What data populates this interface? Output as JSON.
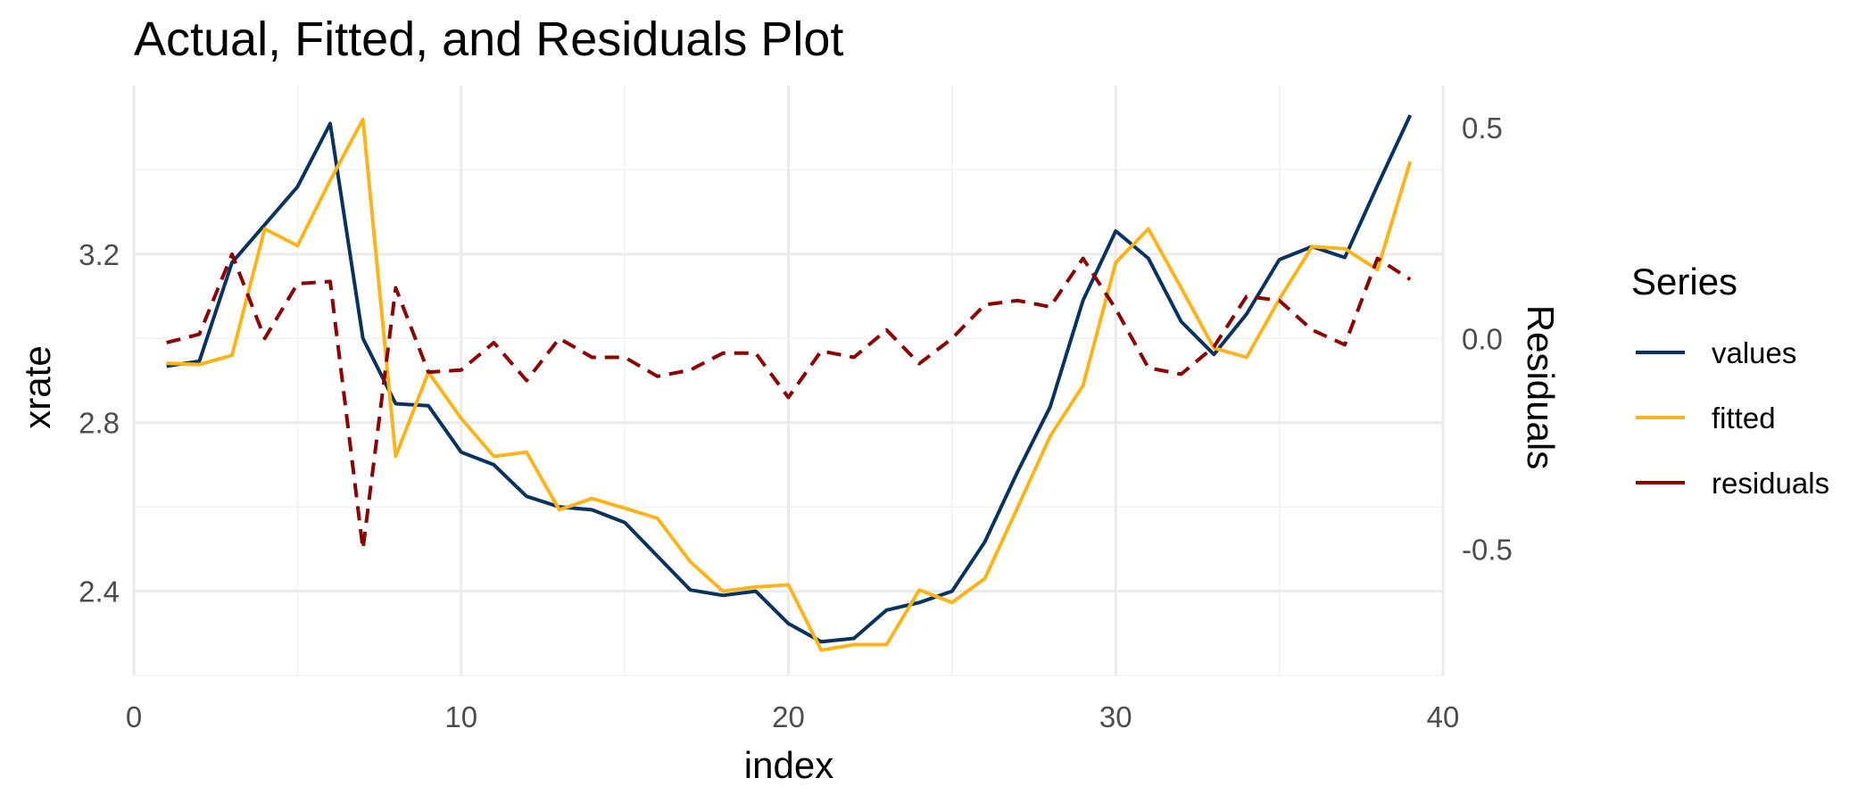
{
  "chart_data": {
    "type": "line",
    "title": "Actual, Fitted, and Residuals Plot",
    "xlabel": "index",
    "ylabel": "xrate",
    "y2label": "Residuals",
    "xlim": [
      0,
      40
    ],
    "ylim": [
      2.2,
      3.6
    ],
    "y2lim": [
      -0.8,
      0.6
    ],
    "x_ticks": [
      "0",
      "10",
      "20",
      "30",
      "40"
    ],
    "y_ticks": [
      "2.4",
      "2.8",
      "3.2"
    ],
    "y2_ticks": [
      "-0.5",
      "0.0",
      "0.5"
    ],
    "grid": true,
    "legend": {
      "title": "Series",
      "position": "right"
    },
    "x": [
      1,
      2,
      3,
      4,
      5,
      6,
      7,
      8,
      9,
      10,
      11,
      12,
      13,
      14,
      15,
      16,
      17,
      18,
      19,
      20,
      21,
      22,
      23,
      24,
      25,
      26,
      27,
      28,
      29,
      30,
      31,
      32,
      33,
      34,
      35,
      36,
      37,
      38,
      39
    ],
    "series": [
      {
        "name": "values",
        "axis": "left",
        "style": "solid",
        "color": "#08335f",
        "values": [
          2.934,
          2.946,
          3.18,
          3.27,
          3.36,
          3.51,
          3.0,
          2.845,
          2.84,
          2.73,
          2.7,
          2.625,
          2.6,
          2.593,
          2.563,
          2.483,
          2.403,
          2.39,
          2.4,
          2.323,
          2.28,
          2.288,
          2.355,
          2.373,
          2.4,
          2.517,
          2.683,
          2.838,
          3.09,
          3.255,
          3.19,
          3.04,
          2.962,
          3.058,
          3.187,
          3.218,
          3.192,
          3.363,
          3.53
        ]
      },
      {
        "name": "fitted",
        "axis": "left",
        "style": "solid",
        "color": "#fbb41b",
        "values": [
          2.941,
          2.938,
          2.96,
          3.26,
          3.22,
          3.375,
          3.52,
          2.72,
          2.92,
          2.81,
          2.72,
          2.73,
          2.593,
          2.62,
          2.597,
          2.573,
          2.47,
          2.4,
          2.41,
          2.415,
          2.26,
          2.273,
          2.273,
          2.403,
          2.373,
          2.43,
          2.598,
          2.768,
          2.888,
          3.18,
          3.26,
          3.12,
          2.977,
          2.955,
          3.093,
          3.218,
          3.213,
          3.163,
          3.42
        ]
      },
      {
        "name": "residuals",
        "axis": "right",
        "style": "dashed",
        "color": "#8b0000",
        "values": [
          -0.01,
          0.01,
          0.2,
          0.0,
          0.13,
          0.135,
          -0.5,
          0.12,
          -0.08,
          -0.075,
          -0.01,
          -0.1,
          0.0,
          -0.045,
          -0.045,
          -0.09,
          -0.075,
          -0.035,
          -0.035,
          -0.14,
          -0.03,
          -0.045,
          0.02,
          -0.06,
          0.0,
          0.08,
          0.09,
          0.075,
          0.19,
          0.07,
          -0.07,
          -0.085,
          -0.02,
          0.1,
          0.09,
          0.02,
          -0.015,
          0.19,
          0.14
        ]
      }
    ]
  }
}
